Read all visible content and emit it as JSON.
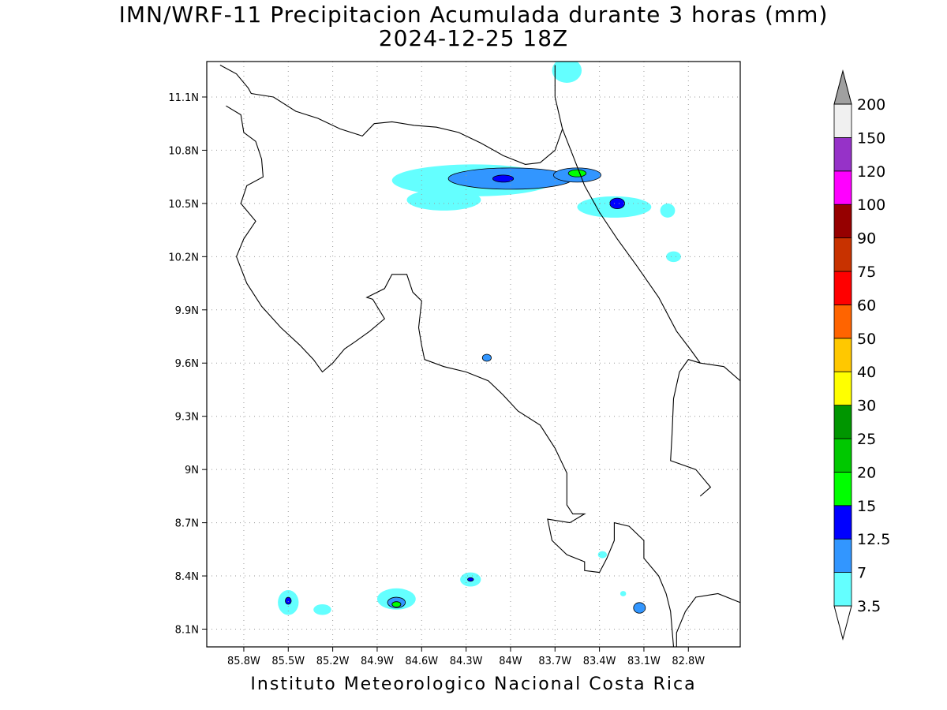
{
  "title": "IMN/WRF-11 Precipitacion Acumulada durante 3 horas (mm)",
  "subtitle": "2024-12-25 18Z",
  "footer": "Instituto Meteorologico Nacional Costa Rica",
  "map": {
    "lon_range": [
      -86.05,
      -82.45
    ],
    "lat_range": [
      8.0,
      11.3
    ],
    "x_ticks": [
      {
        "value": -85.8,
        "label": "85.8W"
      },
      {
        "value": -85.5,
        "label": "85.5W"
      },
      {
        "value": -85.2,
        "label": "85.2W"
      },
      {
        "value": -84.9,
        "label": "84.9W"
      },
      {
        "value": -84.6,
        "label": "84.6W"
      },
      {
        "value": -84.3,
        "label": "84.3W"
      },
      {
        "value": -84.0,
        "label": "84W"
      },
      {
        "value": -83.7,
        "label": "83.7W"
      },
      {
        "value": -83.4,
        "label": "83.4W"
      },
      {
        "value": -83.1,
        "label": "83.1W"
      },
      {
        "value": -82.8,
        "label": "82.8W"
      }
    ],
    "y_ticks": [
      {
        "value": 8.1,
        "label": "8.1N"
      },
      {
        "value": 8.4,
        "label": "8.4N"
      },
      {
        "value": 8.7,
        "label": "8.7N"
      },
      {
        "value": 9.0,
        "label": "9N"
      },
      {
        "value": 9.3,
        "label": "9.3N"
      },
      {
        "value": 9.6,
        "label": "9.6N"
      },
      {
        "value": 9.9,
        "label": "9.9N"
      },
      {
        "value": 10.2,
        "label": "10.2N"
      },
      {
        "value": 10.5,
        "label": "10.5N"
      },
      {
        "value": 10.8,
        "label": "10.8N"
      },
      {
        "value": 11.1,
        "label": "11.1N"
      }
    ],
    "grid": "dotted",
    "coastline": [
      [
        [
          -85.96,
          11.28
        ],
        [
          -85.85,
          11.23
        ],
        [
          -85.77,
          11.15
        ],
        [
          -85.75,
          11.12
        ],
        [
          -85.6,
          11.1
        ],
        [
          -85.45,
          11.02
        ],
        [
          -85.3,
          10.98
        ],
        [
          -85.15,
          10.92
        ],
        [
          -85.0,
          10.88
        ],
        [
          -84.92,
          10.95
        ],
        [
          -84.8,
          10.96
        ],
        [
          -84.65,
          10.94
        ],
        [
          -84.5,
          10.93
        ],
        [
          -84.35,
          10.9
        ],
        [
          -84.2,
          10.84
        ],
        [
          -84.05,
          10.77
        ],
        [
          -83.9,
          10.72
        ],
        [
          -83.8,
          10.73
        ],
        [
          -83.7,
          10.8
        ],
        [
          -83.65,
          10.92
        ],
        [
          -83.7,
          11.1
        ],
        [
          -83.7,
          11.28
        ]
      ],
      [
        [
          -85.92,
          11.05
        ],
        [
          -85.82,
          11.0
        ],
        [
          -85.8,
          10.9
        ],
        [
          -85.72,
          10.85
        ],
        [
          -85.68,
          10.75
        ],
        [
          -85.67,
          10.65
        ],
        [
          -85.78,
          10.6
        ],
        [
          -85.82,
          10.5
        ],
        [
          -85.72,
          10.4
        ],
        [
          -85.8,
          10.3
        ],
        [
          -85.85,
          10.2
        ],
        [
          -85.78,
          10.05
        ],
        [
          -85.68,
          9.92
        ],
        [
          -85.55,
          9.8
        ],
        [
          -85.42,
          9.7
        ],
        [
          -85.33,
          9.62
        ],
        [
          -85.27,
          9.55
        ],
        [
          -85.2,
          9.6
        ],
        [
          -85.12,
          9.68
        ],
        [
          -85.05,
          9.72
        ],
        [
          -84.95,
          9.78
        ],
        [
          -84.85,
          9.85
        ],
        [
          -84.93,
          9.96
        ],
        [
          -84.97,
          9.97
        ],
        [
          -84.85,
          10.02
        ],
        [
          -84.8,
          10.1
        ],
        [
          -84.7,
          10.1
        ],
        [
          -84.66,
          10.0
        ],
        [
          -84.6,
          9.95
        ],
        [
          -84.62,
          9.8
        ],
        [
          -84.6,
          9.7
        ],
        [
          -84.58,
          9.62
        ],
        [
          -84.45,
          9.58
        ],
        [
          -84.3,
          9.55
        ],
        [
          -84.15,
          9.5
        ],
        [
          -84.05,
          9.42
        ],
        [
          -83.95,
          9.33
        ],
        [
          -83.8,
          9.25
        ],
        [
          -83.7,
          9.12
        ],
        [
          -83.62,
          8.98
        ],
        [
          -83.62,
          8.8
        ],
        [
          -83.58,
          8.75
        ],
        [
          -83.5,
          8.75
        ],
        [
          -83.6,
          8.7
        ],
        [
          -83.75,
          8.72
        ],
        [
          -83.72,
          8.6
        ],
        [
          -83.62,
          8.52
        ],
        [
          -83.5,
          8.48
        ],
        [
          -83.5,
          8.43
        ],
        [
          -83.4,
          8.42
        ],
        [
          -83.35,
          8.5
        ],
        [
          -83.3,
          8.6
        ],
        [
          -83.3,
          8.7
        ],
        [
          -83.2,
          8.68
        ],
        [
          -83.1,
          8.6
        ],
        [
          -83.1,
          8.5
        ],
        [
          -83.0,
          8.4
        ],
        [
          -82.95,
          8.3
        ],
        [
          -82.92,
          8.2
        ],
        [
          -82.9,
          8.0
        ]
      ]
    ],
    "border_lines": [
      [
        [
          -83.65,
          10.92
        ],
        [
          -83.57,
          10.75
        ],
        [
          -83.5,
          10.6
        ],
        [
          -83.4,
          10.45
        ],
        [
          -83.28,
          10.3
        ],
        [
          -83.15,
          10.15
        ],
        [
          -83.0,
          9.97
        ],
        [
          -82.88,
          9.78
        ],
        [
          -82.78,
          9.67
        ],
        [
          -82.72,
          9.6
        ],
        [
          -82.56,
          9.58
        ],
        [
          -82.45,
          9.5
        ]
      ],
      [
        [
          -82.45,
          8.25
        ],
        [
          -82.6,
          8.3
        ],
        [
          -82.75,
          8.28
        ],
        [
          -82.82,
          8.2
        ],
        [
          -82.88,
          8.08
        ],
        [
          -82.88,
          8.0
        ]
      ],
      [
        [
          -82.72,
          9.6
        ],
        [
          -82.8,
          9.62
        ],
        [
          -82.86,
          9.55
        ],
        [
          -82.9,
          9.4
        ],
        [
          -82.91,
          9.2
        ],
        [
          -82.92,
          9.05
        ],
        [
          -82.75,
          9.0
        ],
        [
          -82.65,
          8.9
        ],
        [
          -82.72,
          8.85
        ]
      ]
    ]
  },
  "colorbar": {
    "levels": [
      "3.5",
      "7",
      "12.5",
      "15",
      "20",
      "25",
      "30",
      "40",
      "50",
      "60",
      "75",
      "90",
      "100",
      "120",
      "150",
      "200"
    ],
    "colors": [
      "#ffffff",
      "#64ffff",
      "#3296ff",
      "#0000ff",
      "#00ff00",
      "#00c800",
      "#009600",
      "#ffff00",
      "#ffc800",
      "#ff6400",
      "#ff0000",
      "#c83200",
      "#960000",
      "#ff00ff",
      "#9632c8",
      "#f0f0f0",
      "#a0a0a0"
    ]
  },
  "precip_cells": [
    {
      "lon": -84.25,
      "lat": 10.63,
      "rlon": 0.55,
      "rlat": 0.09,
      "level": 1
    },
    {
      "lon": -84.0,
      "lat": 10.64,
      "rlon": 0.42,
      "rlat": 0.06,
      "level": 2
    },
    {
      "lon": -83.55,
      "lat": 10.66,
      "rlon": 0.16,
      "rlat": 0.04,
      "level": 2
    },
    {
      "lon": -83.55,
      "lat": 10.67,
      "rlon": 0.06,
      "rlat": 0.02,
      "level": 4
    },
    {
      "lon": -84.05,
      "lat": 10.64,
      "rlon": 0.07,
      "rlat": 0.02,
      "level": 3
    },
    {
      "lon": -84.45,
      "lat": 10.52,
      "rlon": 0.25,
      "rlat": 0.06,
      "level": 1
    },
    {
      "lon": -83.3,
      "lat": 10.48,
      "rlon": 0.25,
      "rlat": 0.06,
      "level": 1
    },
    {
      "lon": -83.28,
      "lat": 10.5,
      "rlon": 0.05,
      "rlat": 0.03,
      "level": 3
    },
    {
      "lon": -83.62,
      "lat": 11.25,
      "rlon": 0.1,
      "rlat": 0.07,
      "level": 1
    },
    {
      "lon": -85.5,
      "lat": 8.25,
      "rlon": 0.07,
      "rlat": 0.07,
      "level": 1
    },
    {
      "lon": -85.5,
      "lat": 8.26,
      "rlon": 0.02,
      "rlat": 0.02,
      "level": 3
    },
    {
      "lon": -85.27,
      "lat": 8.21,
      "rlon": 0.06,
      "rlat": 0.03,
      "level": 1
    },
    {
      "lon": -84.77,
      "lat": 8.27,
      "rlon": 0.13,
      "rlat": 0.06,
      "level": 1
    },
    {
      "lon": -84.77,
      "lat": 8.25,
      "rlon": 0.06,
      "rlat": 0.03,
      "level": 2
    },
    {
      "lon": -84.77,
      "lat": 8.24,
      "rlon": 0.03,
      "rlat": 0.015,
      "level": 4
    },
    {
      "lon": -84.27,
      "lat": 8.38,
      "rlon": 0.07,
      "rlat": 0.04,
      "level": 1
    },
    {
      "lon": -84.27,
      "lat": 8.38,
      "rlon": 0.02,
      "rlat": 0.01,
      "level": 3
    },
    {
      "lon": -84.16,
      "lat": 9.63,
      "rlon": 0.03,
      "rlat": 0.02,
      "level": 2
    },
    {
      "lon": -83.13,
      "lat": 8.22,
      "rlon": 0.04,
      "rlat": 0.03,
      "level": 2
    },
    {
      "lon": -82.9,
      "lat": 10.2,
      "rlon": 0.05,
      "rlat": 0.03,
      "level": 1
    },
    {
      "lon": -82.94,
      "lat": 10.46,
      "rlon": 0.05,
      "rlat": 0.04,
      "level": 1
    },
    {
      "lon": -83.38,
      "lat": 8.52,
      "rlon": 0.03,
      "rlat": 0.02,
      "level": 1
    },
    {
      "lon": -83.24,
      "lat": 8.3,
      "rlon": 0.02,
      "rlat": 0.015,
      "level": 1
    }
  ]
}
